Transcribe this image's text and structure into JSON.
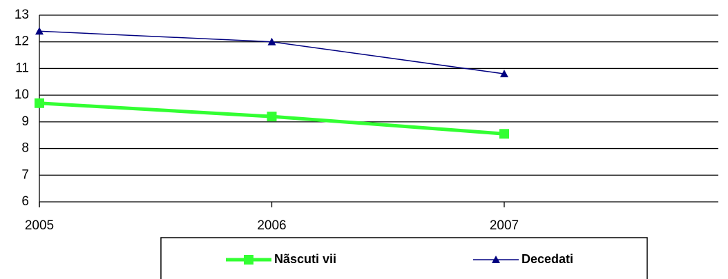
{
  "chart_data": {
    "type": "line",
    "categories": [
      "2005",
      "2006",
      "2007"
    ],
    "series": [
      {
        "name": "Nãscuti vii",
        "color": "#33ff33",
        "marker": "square",
        "values": [
          9.7,
          9.2,
          8.55
        ]
      },
      {
        "name": "Decedati",
        "color": "#000080",
        "marker": "triangle",
        "values": [
          12.4,
          12.0,
          10.8
        ]
      }
    ],
    "ylim": [
      6,
      13
    ],
    "yticks": [
      6,
      7,
      8,
      9,
      10,
      11,
      12,
      13
    ],
    "grid": true
  }
}
